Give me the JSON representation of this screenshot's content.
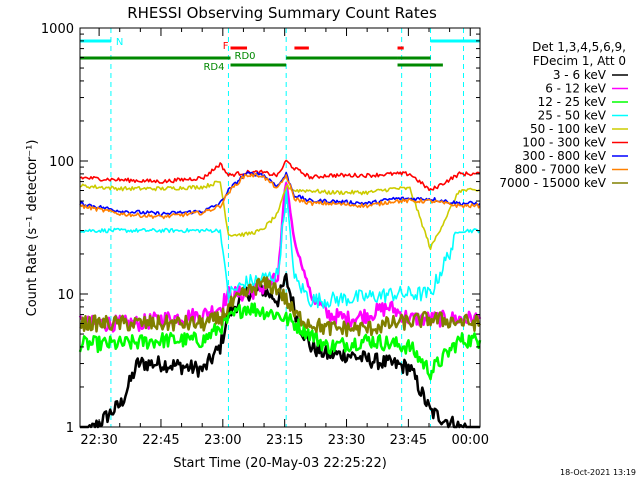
{
  "chart_data": {
    "type": "line",
    "title": "RHESSI Observing Summary Count Rates",
    "xlabel": "Start Time (20-May-03 22:25:22)",
    "ylabel": "Count Rate (s⁻¹ detector⁻¹)",
    "ylog": true,
    "ylim": [
      1,
      1000
    ],
    "xlim_minutes": [
      0,
      97
    ],
    "x_ticks": [
      "22:30",
      "22:45",
      "23:00",
      "23:15",
      "23:30",
      "23:45",
      "00:00"
    ],
    "y_ticks": [
      "1",
      "10",
      "100",
      "1000"
    ],
    "footer": "18-Oct-2021 13:19",
    "legend_header": [
      "Det 1,3,4,5,6,9,",
      "FDecim 1, Att 0"
    ],
    "series": [
      {
        "name": "3 - 6 keV",
        "color": "#000000",
        "x": [
          0,
          10,
          14,
          20,
          30,
          34,
          36,
          40,
          44,
          48,
          50,
          53,
          56,
          60,
          65,
          70,
          75,
          80,
          85,
          92,
          97
        ],
        "y": [
          0.8,
          1.5,
          3,
          3,
          2.7,
          4,
          7,
          10,
          11,
          9,
          13,
          6,
          4,
          3.5,
          3.5,
          3.2,
          3,
          2.8,
          1.3,
          1,
          0.9
        ]
      },
      {
        "name": "6 - 12 keV",
        "color": "#ff00ff",
        "x": [
          0,
          14,
          20,
          30,
          34,
          36,
          40,
          44,
          48,
          50,
          52,
          56,
          60,
          65,
          70,
          75,
          80,
          85,
          92,
          97
        ],
        "y": [
          6,
          6,
          6.5,
          7,
          8,
          10,
          10,
          11,
          13,
          70,
          25,
          10,
          7,
          6.5,
          7,
          8,
          6.5,
          6.5,
          6.5,
          6.5
        ]
      },
      {
        "name": "12 - 25 keV",
        "color": "#00ff00",
        "x": [
          0,
          10,
          20,
          30,
          40,
          48,
          52,
          56,
          60,
          70,
          80,
          85,
          92,
          97
        ],
        "y": [
          4.2,
          4.2,
          4.5,
          4.5,
          8,
          7,
          6,
          5,
          4,
          4.5,
          4,
          2.6,
          4.5,
          4.5
        ]
      },
      {
        "name": "25 - 50 keV",
        "color": "#00ffff",
        "x": [
          0,
          10,
          20,
          30,
          34,
          36,
          40,
          44,
          48,
          50,
          52,
          56,
          60,
          70,
          76,
          80,
          85,
          92,
          97
        ],
        "y": [
          30,
          30,
          30,
          30,
          30,
          10,
          12,
          13,
          14,
          60,
          13,
          9,
          9,
          9.5,
          10,
          10,
          10,
          30,
          30
        ]
      },
      {
        "name": "50 - 100 keV",
        "color": "#cccc00",
        "x": [
          0,
          10,
          20,
          30,
          34,
          36,
          40,
          44,
          48,
          50,
          52,
          56,
          60,
          70,
          76,
          80,
          85,
          92,
          97
        ],
        "y": [
          65,
          62,
          62,
          64,
          70,
          28,
          28,
          30,
          40,
          65,
          60,
          60,
          58,
          58,
          62,
          62,
          22,
          60,
          60
        ]
      },
      {
        "name": "100 - 300 keV",
        "color": "#ff0000",
        "x": [
          0,
          10,
          20,
          30,
          34,
          36,
          40,
          44,
          48,
          50,
          52,
          56,
          60,
          70,
          76,
          80,
          85,
          92,
          97
        ],
        "y": [
          75,
          72,
          70,
          75,
          95,
          78,
          82,
          82,
          78,
          100,
          88,
          75,
          78,
          78,
          80,
          80,
          60,
          80,
          80
        ]
      },
      {
        "name": "300 - 800 keV",
        "color": "#0000ff",
        "x": [
          0,
          10,
          20,
          30,
          34,
          36,
          40,
          44,
          48,
          50,
          52,
          56,
          60,
          70,
          76,
          80,
          85,
          92,
          97
        ],
        "y": [
          48,
          42,
          40,
          42,
          48,
          60,
          80,
          80,
          65,
          80,
          55,
          50,
          50,
          48,
          52,
          52,
          52,
          48,
          48
        ]
      },
      {
        "name": "800 - 7000 keV",
        "color": "#ff8000",
        "x": [
          0,
          10,
          20,
          30,
          34,
          36,
          40,
          44,
          48,
          50,
          52,
          56,
          60,
          70,
          76,
          80,
          85,
          92,
          97
        ],
        "y": [
          46,
          40,
          38,
          41,
          46,
          58,
          78,
          78,
          62,
          78,
          52,
          48,
          48,
          46,
          50,
          50,
          50,
          46,
          46
        ]
      },
      {
        "name": "7000 - 15000 keV",
        "color": "#808000",
        "x": [
          0,
          10,
          20,
          30,
          34,
          36,
          40,
          44,
          48,
          50,
          52,
          56,
          60,
          70,
          76,
          80,
          85,
          92,
          97
        ],
        "y": [
          6,
          6,
          6,
          6,
          6.5,
          8,
          10,
          12,
          11,
          9,
          7,
          6,
          5.5,
          5.5,
          6,
          6.2,
          6.5,
          6.2,
          6
        ]
      }
    ],
    "annotations": [
      {
        "label": "N",
        "color": "#00ffff",
        "row": 0,
        "segments": [
          [
            0,
            7.5
          ],
          [
            85,
            97
          ]
        ]
      },
      {
        "label": "F",
        "color": "#ff0000",
        "row": 1,
        "segments": [
          [
            36.5,
            40.5
          ],
          [
            52,
            55.5
          ],
          [
            77,
            78.5
          ]
        ]
      },
      {
        "label": "RD0",
        "color": "#008800",
        "row": 2,
        "segments": [
          [
            0,
            36.5
          ],
          [
            50,
            77
          ],
          [
            77,
            85
          ]
        ]
      },
      {
        "label": "RD4",
        "color": "#008800",
        "row": 3,
        "segments": [
          [
            36.5,
            50
          ],
          [
            77,
            88
          ]
        ]
      }
    ],
    "vertical_markers": [
      7.5,
      36,
      50,
      78,
      85,
      93
    ]
  }
}
